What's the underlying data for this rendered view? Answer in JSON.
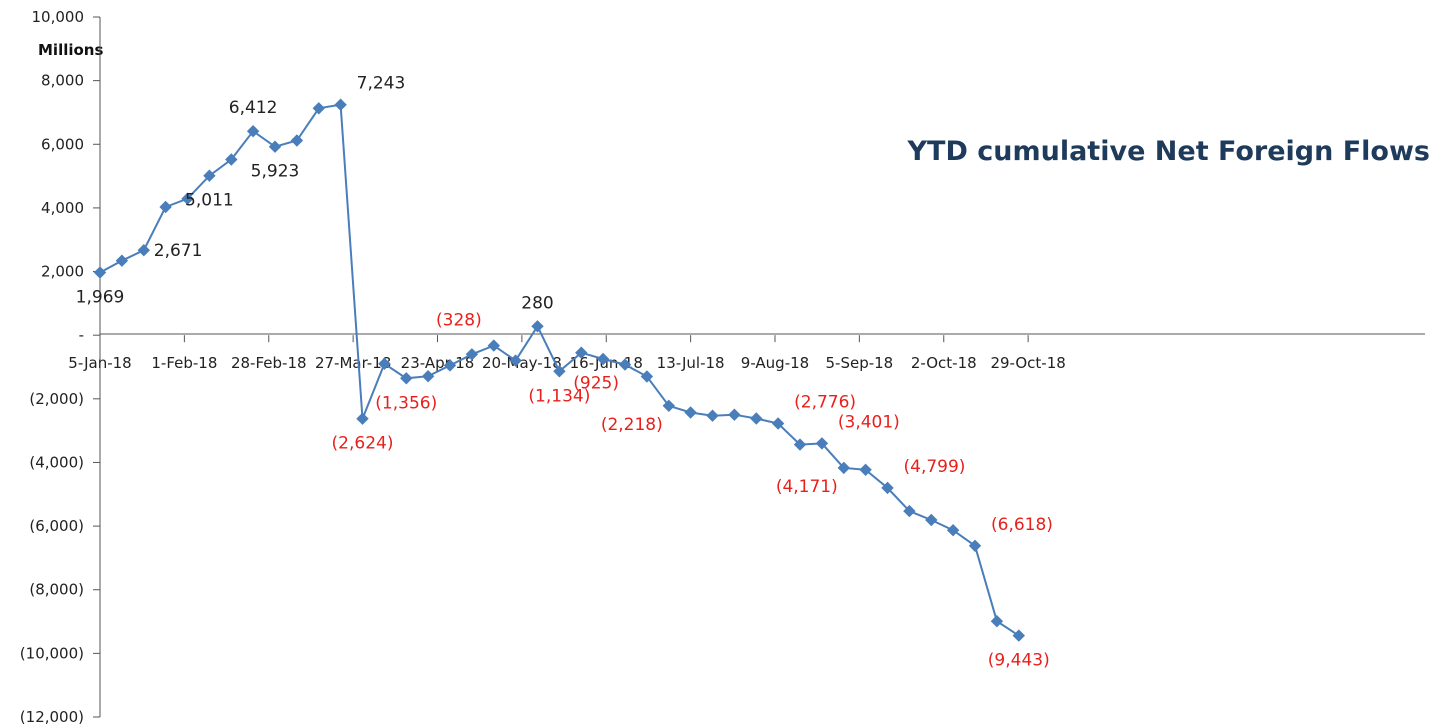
{
  "chart_data": {
    "type": "line",
    "title": "YTD cumulative Net Foreign Flows",
    "unit_label": "Millions",
    "ylim": [
      -12000,
      10000
    ],
    "y_ticks": [
      10000,
      8000,
      6000,
      4000,
      2000,
      0,
      -2000,
      -4000,
      -6000,
      -8000,
      -10000,
      -12000
    ],
    "y_tick_labels": [
      "10,000",
      "8,000",
      "6,000",
      "4,000",
      "2,000",
      "-",
      "(2,000)",
      "(4,000)",
      "(6,000)",
      "(8,000)",
      "(10,000)",
      "(12,000)"
    ],
    "x_start": "2018-01-05",
    "x_end_days": 424,
    "x_tick_labels": [
      "5-Jan-18",
      "1-Feb-18",
      "28-Feb-18",
      "27-Mar-18",
      "23-Apr-18",
      "20-May-18",
      "16-Jun-18",
      "13-Jul-18",
      "9-Aug-18",
      "5-Sep-18",
      "2-Oct-18",
      "29-Oct-18"
    ],
    "x_tick_days": [
      0,
      27,
      54,
      81,
      108,
      135,
      162,
      189,
      216,
      243,
      270,
      297
    ],
    "series": [
      {
        "name": "YTD cumulative Net Foreign Flows",
        "color": "#4a7ebb",
        "days": [
          0,
          7,
          14,
          21,
          28,
          35,
          42,
          49,
          56,
          63,
          70,
          77,
          84,
          91,
          98,
          105,
          112,
          119,
          126,
          133,
          140,
          147,
          154,
          161,
          168,
          175,
          182,
          189,
          196,
          203,
          210,
          217,
          224,
          231,
          238,
          245,
          252,
          259,
          266,
          273,
          280,
          287,
          294
        ],
        "values": [
          1969,
          2340,
          2671,
          4030,
          4290,
          5011,
          5520,
          6412,
          5923,
          6120,
          7130,
          7243,
          -2624,
          -900,
          -1356,
          -1290,
          -950,
          -600,
          -328,
          -800,
          280,
          -1134,
          -550,
          -750,
          -925,
          -1300,
          -2218,
          -2430,
          -2530,
          -2500,
          -2620,
          -2776,
          -3440,
          -3401,
          -4171,
          -4230,
          -4799,
          -5530,
          -5810,
          -6130,
          -6618,
          -8990,
          -9443
        ]
      }
    ],
    "data_labels": [
      {
        "i": 0,
        "text": "1,969",
        "color": "#222222",
        "pos": "below"
      },
      {
        "i": 2,
        "text": "2,671",
        "color": "#222222",
        "pos": "right"
      },
      {
        "i": 5,
        "text": "5,011",
        "color": "#222222",
        "pos": "below"
      },
      {
        "i": 7,
        "text": "6,412",
        "color": "#222222",
        "pos": "above"
      },
      {
        "i": 8,
        "text": "5,923",
        "color": "#222222",
        "pos": "below"
      },
      {
        "i": 11,
        "text": "7,243",
        "color": "#222222",
        "pos": "above-right"
      },
      {
        "i": 12,
        "text": "(2,624)",
        "color": "#e8201c",
        "pos": "below"
      },
      {
        "i": 14,
        "text": "(1,356)",
        "color": "#e8201c",
        "pos": "below"
      },
      {
        "i": 18,
        "text": "(328)",
        "color": "#e8201c",
        "pos": "above-left"
      },
      {
        "i": 20,
        "text": "280",
        "color": "#222222",
        "pos": "above"
      },
      {
        "i": 21,
        "text": "(1,134)",
        "color": "#e8201c",
        "pos": "below"
      },
      {
        "i": 24,
        "text": "(925)",
        "color": "#e8201c",
        "pos": "below-left"
      },
      {
        "i": 26,
        "text": "(2,218)",
        "color": "#e8201c",
        "pos": "below-left"
      },
      {
        "i": 31,
        "text": "(2,776)",
        "color": "#e8201c",
        "pos": "above-right"
      },
      {
        "i": 33,
        "text": "(3,401)",
        "color": "#e8201c",
        "pos": "above-right"
      },
      {
        "i": 34,
        "text": "(4,171)",
        "color": "#e8201c",
        "pos": "below-left"
      },
      {
        "i": 36,
        "text": "(4,799)",
        "color": "#e8201c",
        "pos": "above-right"
      },
      {
        "i": 40,
        "text": "(6,618)",
        "color": "#e8201c",
        "pos": "above-right"
      },
      {
        "i": 42,
        "text": "(9,443)",
        "color": "#e8201c",
        "pos": "below"
      }
    ],
    "grid": false,
    "legend": "none"
  }
}
